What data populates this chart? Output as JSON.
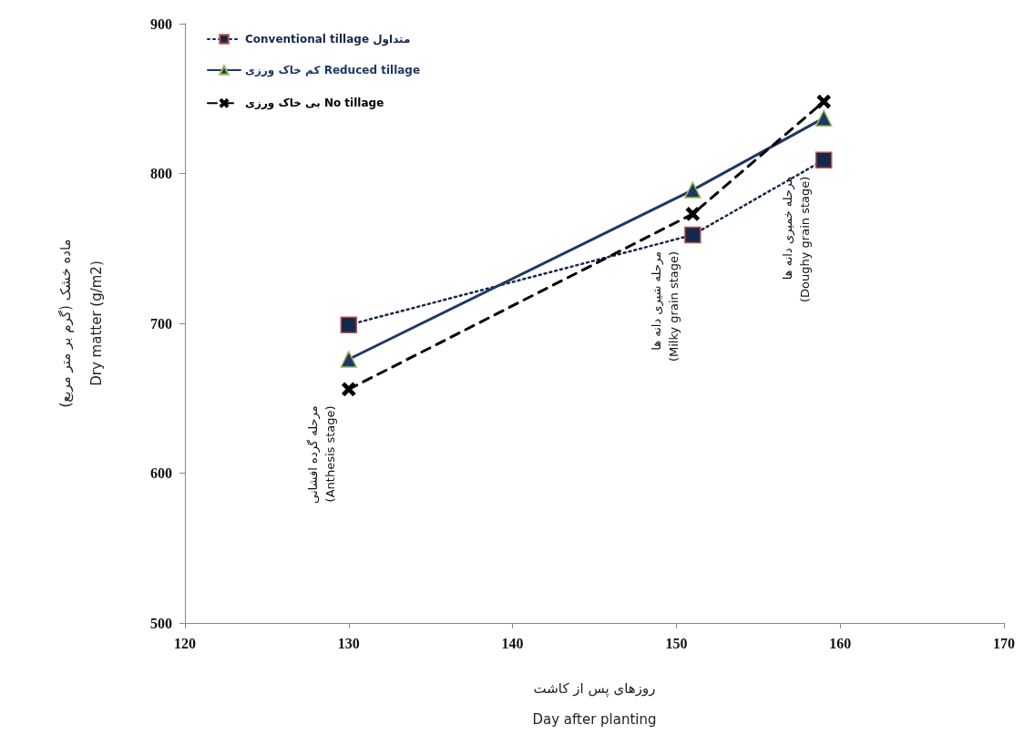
{
  "chart_data": {
    "type": "line",
    "xlabel": "روزهای پس از کاشت\nDay after planting",
    "ylabel": "ماده خشک (گرم بر متر مربع)\nDry matter (g/m2)",
    "x": [
      130,
      151,
      159
    ],
    "series": [
      {
        "name": "Conventional tillage متداول",
        "color": "#14284b",
        "values": [
          699,
          759,
          809
        ],
        "marker": "square",
        "line_style": "dotted"
      },
      {
        "name": "کم خاک ورزی Reduced tillage",
        "color": "#1f3864",
        "values": [
          676,
          789,
          837
        ],
        "marker": "triangle",
        "line_style": "solid"
      },
      {
        "name": "بی خاک ورزی No tillage",
        "color": "#000000",
        "values": [
          656,
          773,
          848
        ],
        "marker": "cross",
        "line_style": "dashed"
      }
    ],
    "xlim": [
      120,
      170
    ],
    "xticks": [
      120,
      130,
      140,
      150,
      160,
      170
    ],
    "ylim": [
      500,
      900
    ],
    "yticks": [
      500,
      600,
      700,
      800,
      900
    ],
    "grid": false,
    "legend": "top left",
    "annotations": [
      {
        "text": "مرحله گرده افشانی\n(Anthesis stage)",
        "x": 130,
        "y": 656
      },
      {
        "text": "مرحله شیری دانه ها\n(Milky grain stage)",
        "x": 151,
        "y": 759
      },
      {
        "text": "مرحله خمیری دانه ها\n(Doughy grain stage)",
        "x": 159,
        "y": 809
      }
    ]
  }
}
